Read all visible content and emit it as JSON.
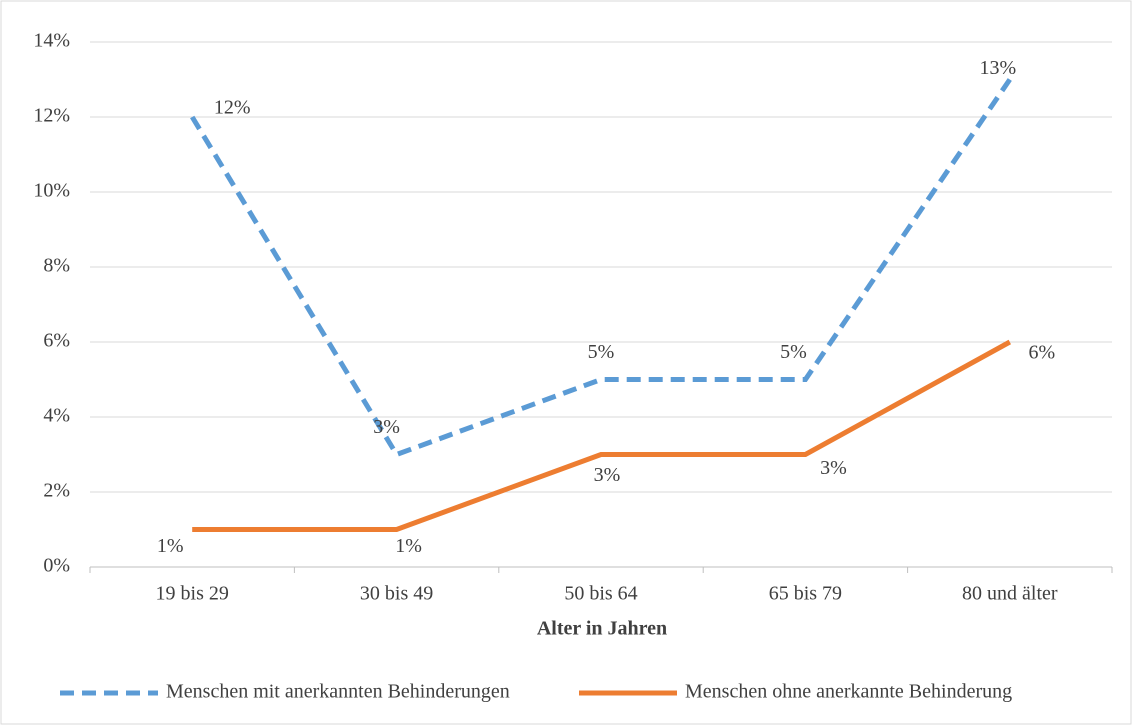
{
  "chart_data": {
    "type": "line",
    "x_label": "Alter in Jahren",
    "categories": [
      "19 bis 29",
      "30 bis 49",
      "50 bis 64",
      "65 bis 79",
      "80 und älter"
    ],
    "series": [
      {
        "name": "Menschen mit anerkannten Behinderungen",
        "color": "#5b9bd5",
        "dashed": true,
        "values": [
          12,
          3,
          5,
          5,
          13
        ],
        "value_labels": [
          "12%",
          "3%",
          "5%",
          "5%",
          "13%"
        ]
      },
      {
        "name": "Menschen ohne anerkannte Behinderung",
        "color": "#ed7d31",
        "dashed": false,
        "values": [
          1,
          1,
          3,
          3,
          6
        ],
        "value_labels": [
          "1%",
          "1%",
          "3%",
          "3%",
          "6%"
        ]
      }
    ],
    "ylim": [
      0,
      14
    ],
    "yticks": [
      {
        "value": 0,
        "label": "0%"
      },
      {
        "value": 2,
        "label": "2%"
      },
      {
        "value": 4,
        "label": "4%"
      },
      {
        "value": 6,
        "label": "6%"
      },
      {
        "value": 8,
        "label": "8%"
      },
      {
        "value": 10,
        "label": "10%"
      },
      {
        "value": 12,
        "label": "12%"
      },
      {
        "value": 14,
        "label": "14%"
      }
    ],
    "grid": true,
    "legend": "bottom"
  }
}
